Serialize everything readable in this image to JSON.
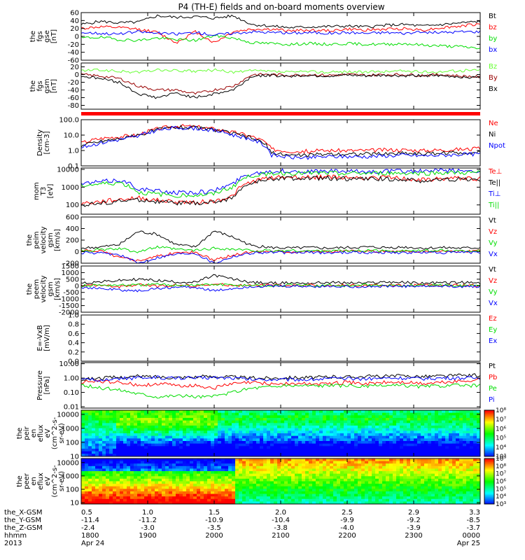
{
  "title": "P4 (TH-E) fields and on-board moments overview",
  "colors": {
    "black": "#000000",
    "red": "#ff0000",
    "green": "#00dd00",
    "blue": "#0000ff",
    "darkred": "#990000",
    "lightgreen": "#66ff33",
    "bar_red": "#ff0000"
  },
  "x_axis": {
    "rows": [
      {
        "label": "the_X-GSM",
        "values": [
          "0.5",
          "1.0",
          "1.5",
          "2.0",
          "2.5",
          "2.9",
          "3.3"
        ]
      },
      {
        "label": "the_Y-GSM",
        "values": [
          "-11.4",
          "-11.2",
          "-10.9",
          "-10.4",
          "-9.9",
          "-9.2",
          "-8.5"
        ]
      },
      {
        "label": "the_Z-GSM",
        "values": [
          "-2.4",
          "-3.0",
          "-3.5",
          "-3.8",
          "-4.0",
          "-3.9",
          "-3.7"
        ]
      },
      {
        "label": "hhmm",
        "values": [
          "1800",
          "1900",
          "2000",
          "2100",
          "2200",
          "2300",
          "0000"
        ]
      },
      {
        "label": "2013",
        "values": [
          "Apr 24",
          "",
          "",
          "",
          "",
          "",
          "Apr 25"
        ]
      }
    ]
  },
  "chart_data": [
    {
      "type": "line",
      "ylabel": [
        "the",
        "fgs",
        "gse",
        "[nT]"
      ],
      "ylim": [
        -60,
        60
      ],
      "yticks": [
        "60",
        "40",
        "20",
        "0",
        "-20",
        "-40",
        "-60"
      ],
      "series": [
        {
          "name": "Bt",
          "color": "black",
          "values": [
            30,
            38,
            34,
            36,
            52,
            48,
            50,
            46,
            52,
            30,
            26,
            22,
            24,
            25,
            26,
            24,
            28,
            30,
            26,
            30,
            34,
            38
          ]
        },
        {
          "name": "bz",
          "color": "red",
          "values": [
            20,
            24,
            22,
            18,
            10,
            -16,
            12,
            -16,
            12,
            18,
            18,
            14,
            16,
            14,
            18,
            16,
            18,
            20,
            16,
            22,
            26,
            32
          ]
        },
        {
          "name": "by",
          "color": "green",
          "values": [
            -4,
            -2,
            -8,
            -10,
            -4,
            -8,
            -10,
            2,
            -4,
            -16,
            -18,
            -20,
            -18,
            -20,
            -18,
            -20,
            -20,
            -18,
            -22,
            -24,
            -26,
            -30
          ]
        },
        {
          "name": "bx",
          "color": "blue",
          "values": [
            10,
            8,
            6,
            12,
            8,
            6,
            10,
            4,
            8,
            12,
            10,
            8,
            10,
            8,
            10,
            8,
            10,
            8,
            10,
            10,
            12,
            12
          ]
        }
      ]
    },
    {
      "type": "line",
      "ylabel": [
        "the",
        "fgs",
        "gsm",
        "[nT]"
      ],
      "ylim": [
        -90,
        30
      ],
      "yticks": [
        "20",
        "0",
        "-20",
        "-40",
        "-60",
        "-80"
      ],
      "series": [
        {
          "name": "Bz",
          "color": "lightgreen",
          "values": [
            10,
            12,
            8,
            6,
            12,
            10,
            8,
            12,
            6,
            10,
            8,
            6,
            8,
            6,
            8,
            6,
            8,
            10,
            6,
            8,
            10,
            12
          ]
        },
        {
          "name": "By",
          "color": "darkred",
          "values": [
            0,
            -4,
            -10,
            -30,
            -40,
            -40,
            -50,
            -40,
            -30,
            0,
            0,
            -2,
            0,
            -2,
            0,
            -2,
            0,
            0,
            -2,
            0,
            -4,
            -6
          ]
        },
        {
          "name": "Bx",
          "color": "black",
          "values": [
            -4,
            -10,
            -20,
            -50,
            -60,
            -48,
            -60,
            -50,
            -40,
            -4,
            -2,
            -4,
            -2,
            -4,
            -2,
            -4,
            -2,
            -4,
            -2,
            -4,
            -6,
            -8
          ]
        }
      ]
    },
    {
      "type": "line",
      "scale": "log",
      "ylabel": [
        "Density",
        "[cm-3]"
      ],
      "ylim": [
        0.1,
        100
      ],
      "yticks": [
        "100.0",
        "10.0",
        "1.0",
        "0.1"
      ],
      "series": [
        {
          "name": "Ne",
          "color": "red",
          "values": [
            3,
            6,
            8,
            10,
            25,
            40,
            35,
            25,
            15,
            8,
            1.2,
            0.9,
            0.9,
            1.0,
            1.0,
            1.0,
            1.1,
            1.1,
            1.0,
            1.1,
            1.2,
            1.3
          ]
        },
        {
          "name": "Ni",
          "color": "black",
          "values": [
            2,
            4,
            6,
            9,
            22,
            35,
            30,
            22,
            12,
            6,
            0.7,
            0.5,
            0.5,
            0.6,
            0.6,
            0.6,
            0.6,
            0.7,
            0.6,
            0.7,
            0.7,
            0.8
          ]
        },
        {
          "name": "Npot",
          "color": "blue",
          "values": [
            1.5,
            3,
            5,
            8,
            20,
            30,
            28,
            20,
            10,
            5,
            0.5,
            0.35,
            0.35,
            0.4,
            0.4,
            0.4,
            0.45,
            0.5,
            0.45,
            0.5,
            0.55,
            0.6
          ]
        }
      ]
    },
    {
      "type": "line",
      "scale": "log",
      "ylabel": [
        "mom",
        "T3",
        "[eV]"
      ],
      "ylim": [
        30,
        12000
      ],
      "yticks": [
        "10000",
        "1000",
        "100"
      ],
      "series": [
        {
          "name": "Te⊥",
          "color": "red",
          "values": [
            120,
            150,
            200,
            250,
            180,
            150,
            140,
            160,
            300,
            2000,
            3500,
            3800,
            3600,
            3800,
            3500,
            3200,
            3500,
            3000,
            2500,
            3000,
            3200,
            3000
          ]
        },
        {
          "name": "Te||",
          "color": "black",
          "values": [
            100,
            120,
            160,
            200,
            150,
            130,
            120,
            140,
            250,
            1600,
            3000,
            3200,
            3000,
            3200,
            3000,
            2800,
            3000,
            2600,
            2200,
            2600,
            2800,
            2600
          ]
        },
        {
          "name": "Ti⊥",
          "color": "blue",
          "values": [
            1500,
            2000,
            2500,
            800,
            600,
            500,
            500,
            600,
            1500,
            6000,
            8000,
            8000,
            7500,
            8000,
            7500,
            7500,
            8000,
            8000,
            8000,
            8500,
            8500,
            8500
          ]
        },
        {
          "name": "Ti||",
          "color": "green",
          "values": [
            1200,
            1500,
            1800,
            500,
            400,
            350,
            350,
            400,
            1000,
            4500,
            6000,
            6200,
            6000,
            6200,
            6000,
            6000,
            6200,
            6200,
            6000,
            6500,
            6500,
            6500
          ]
        }
      ]
    },
    {
      "type": "line",
      "ylabel": [
        "the",
        "peim",
        "velocity",
        "gsm",
        "[km/s]"
      ],
      "ylim": [
        -200,
        600
      ],
      "yticks": [
        "600",
        "400",
        "200",
        "0",
        "-200"
      ],
      "series": [
        {
          "name": "Vt",
          "color": "black",
          "values": [
            60,
            80,
            120,
            350,
            300,
            120,
            80,
            360,
            250,
            100,
            70,
            60,
            70,
            60,
            70,
            80,
            70,
            80,
            60,
            70,
            60,
            70
          ]
        },
        {
          "name": "Vz",
          "color": "red",
          "values": [
            10,
            20,
            -100,
            -150,
            -80,
            -20,
            -10,
            -150,
            -60,
            0,
            10,
            0,
            10,
            0,
            10,
            0,
            10,
            0,
            0,
            10,
            0,
            10
          ]
        },
        {
          "name": "Vy",
          "color": "green",
          "values": [
            20,
            30,
            50,
            0,
            80,
            40,
            20,
            60,
            40,
            20,
            10,
            20,
            10,
            20,
            10,
            20,
            10,
            20,
            10,
            20,
            10,
            20
          ]
        },
        {
          "name": "Vx",
          "color": "blue",
          "values": [
            -20,
            -30,
            -50,
            -200,
            -100,
            -40,
            -20,
            -200,
            -80,
            -20,
            -10,
            -20,
            -10,
            -20,
            -10,
            -20,
            -10,
            -20,
            -10,
            -20,
            -10,
            -20
          ]
        }
      ]
    },
    {
      "type": "line",
      "ylabel": [
        "the",
        "peem",
        "velocity",
        "gsm",
        "[km/s]"
      ],
      "ylim": [
        -2000,
        1500
      ],
      "yticks": [
        "1500",
        "1000",
        "500",
        "0",
        "-500",
        "-1000",
        "-1500",
        "-2000"
      ],
      "series": [
        {
          "name": "Vt",
          "color": "black",
          "values": [
            200,
            300,
            400,
            500,
            400,
            300,
            250,
            800,
            500,
            250,
            200,
            220,
            200,
            250,
            220,
            200,
            300,
            250,
            200,
            220,
            250,
            200
          ]
        },
        {
          "name": "Vz",
          "color": "red",
          "values": [
            0,
            50,
            -100,
            100,
            -50,
            50,
            0,
            100,
            50,
            0,
            50,
            0,
            50,
            0,
            50,
            0,
            50,
            0,
            50,
            0,
            50,
            0
          ]
        },
        {
          "name": "Vy",
          "color": "green",
          "values": [
            0,
            50,
            50,
            50,
            100,
            50,
            50,
            100,
            50,
            50,
            0,
            50,
            0,
            50,
            0,
            50,
            0,
            50,
            0,
            50,
            0,
            50
          ]
        },
        {
          "name": "Vx",
          "color": "blue",
          "values": [
            -100,
            -200,
            -300,
            -400,
            -200,
            -100,
            -100,
            -400,
            -200,
            -50,
            -50,
            -50,
            -50,
            -50,
            -50,
            -50,
            -50,
            -50,
            -50,
            -50,
            -50,
            -50
          ]
        }
      ]
    },
    {
      "type": "line",
      "ylabel": [
        "E=-VxB",
        "[mV/m]"
      ],
      "ylim": [
        0,
        1
      ],
      "yticks": [
        "1.0",
        "0.8",
        "0.6",
        "0.4",
        "0.2",
        "0.0"
      ],
      "series": [
        {
          "name": "Ez",
          "color": "red",
          "values": []
        },
        {
          "name": "Ey",
          "color": "green",
          "values": []
        },
        {
          "name": "Ex",
          "color": "blue",
          "values": []
        }
      ]
    },
    {
      "type": "line",
      "scale": "log",
      "ylabel": [
        "Pressure",
        "[nPa]"
      ],
      "ylim": [
        0.008,
        12
      ],
      "yticks": [
        "10.00",
        "1.00",
        "0.10",
        "0.01"
      ],
      "series": [
        {
          "name": "Pt",
          "color": "black",
          "values": [
            0.8,
            1.0,
            1.1,
            1.3,
            1.2,
            1.1,
            1.2,
            1.3,
            1.2,
            1.0,
            1.0,
            1.1,
            1.1,
            1.2,
            1.2,
            1.3,
            1.3,
            1.4,
            1.3,
            1.4,
            1.5,
            1.6
          ]
        },
        {
          "name": "Pb",
          "color": "red",
          "values": [
            0.5,
            0.6,
            0.5,
            0.3,
            0.4,
            0.3,
            0.3,
            0.2,
            0.4,
            0.5,
            0.4,
            0.4,
            0.4,
            0.4,
            0.5,
            0.4,
            0.5,
            0.5,
            0.4,
            0.5,
            0.6,
            0.8
          ]
        },
        {
          "name": "Pe",
          "color": "green",
          "values": [
            0.3,
            0.2,
            0.15,
            0.08,
            0.05,
            0.06,
            0.05,
            0.05,
            0.1,
            0.2,
            0.25,
            0.3,
            0.3,
            0.3,
            0.3,
            0.25,
            0.3,
            0.3,
            0.25,
            0.3,
            0.3,
            0.3
          ]
        },
        {
          "name": "Pi",
          "color": "blue",
          "values": [
            0.7,
            0.8,
            0.9,
            1.0,
            1.1,
            1.0,
            1.0,
            1.1,
            1.0,
            0.8,
            0.8,
            0.8,
            0.8,
            0.9,
            0.9,
            0.9,
            1.0,
            1.0,
            0.9,
            1.0,
            1.0,
            1.0
          ]
        }
      ]
    },
    {
      "type": "heatmap",
      "ylabel": [
        "the",
        "peir",
        "en",
        "eflux",
        "eV",
        "(cm^2-s-",
        "sr-eV)"
      ],
      "scale": "log",
      "ylim": [
        10,
        20000
      ],
      "yticks": [
        "10000",
        "1000",
        "100",
        "10"
      ],
      "colorbar": {
        "min_exp": 3,
        "max_exp": 8,
        "labels": [
          "10⁸",
          "10⁷",
          "10⁶",
          "10⁵",
          "10⁴",
          "10³"
        ]
      }
    },
    {
      "type": "heatmap",
      "ylabel": [
        "the",
        "peer",
        "en",
        "eflux",
        "eV",
        "(cm^2-s-",
        "sr-eV)"
      ],
      "scale": "log",
      "ylim": [
        8,
        20000
      ],
      "yticks": [
        "10000",
        "1000",
        "100",
        "10"
      ],
      "colorbar": {
        "min_exp": 3,
        "max_exp": 9,
        "labels": [
          "10⁹",
          "10⁸",
          "10⁷",
          "10⁶",
          "10⁵",
          "10⁴",
          "10³"
        ]
      }
    }
  ]
}
